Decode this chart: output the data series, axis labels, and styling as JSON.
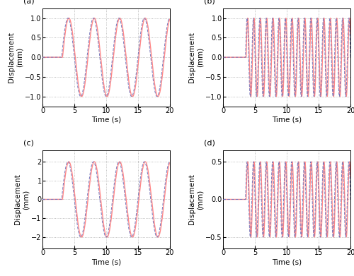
{
  "subplots": [
    {
      "label": "(a)",
      "freq": 0.25,
      "amplitude": 1.0,
      "start_time": 3.0,
      "ylim": [
        -1.25,
        1.25
      ],
      "yticks": [
        -1,
        -0.5,
        0,
        0.5,
        1
      ],
      "delay": 0.15
    },
    {
      "label": "(b)",
      "freq": 1.0,
      "amplitude": 1.0,
      "start_time": 3.5,
      "ylim": [
        -1.25,
        1.25
      ],
      "yticks": [
        -1,
        -0.5,
        0,
        0.5,
        1
      ],
      "delay": 0.1
    },
    {
      "label": "(c)",
      "freq": 0.25,
      "amplitude": 2.0,
      "start_time": 3.0,
      "ylim": [
        -2.6,
        2.6
      ],
      "yticks": [
        -2,
        -1,
        0,
        1,
        2
      ],
      "delay": 0.15
    },
    {
      "label": "(d)",
      "freq": 1.0,
      "amplitude": 0.5,
      "start_time": 3.5,
      "ylim": [
        -0.65,
        0.65
      ],
      "yticks": [
        -0.5,
        0,
        0.5
      ],
      "delay": 0.1
    }
  ],
  "xlim": [
    0,
    20
  ],
  "xticks": [
    0,
    5,
    10,
    15,
    20
  ],
  "xlabel": "Time (s)",
  "ylabel": "Displacement\n(mm)",
  "probe_color": "#7777bb",
  "tissue_color": "#ff8888",
  "probe_lw": 0.7,
  "tissue_lw": 1.0,
  "grid_color": "#aaaaaa",
  "bg_color": "#ffffff",
  "fig_bg": "#ffffff",
  "label_fontsize": 8,
  "tick_fontsize": 7,
  "axis_label_fontsize": 7.5
}
